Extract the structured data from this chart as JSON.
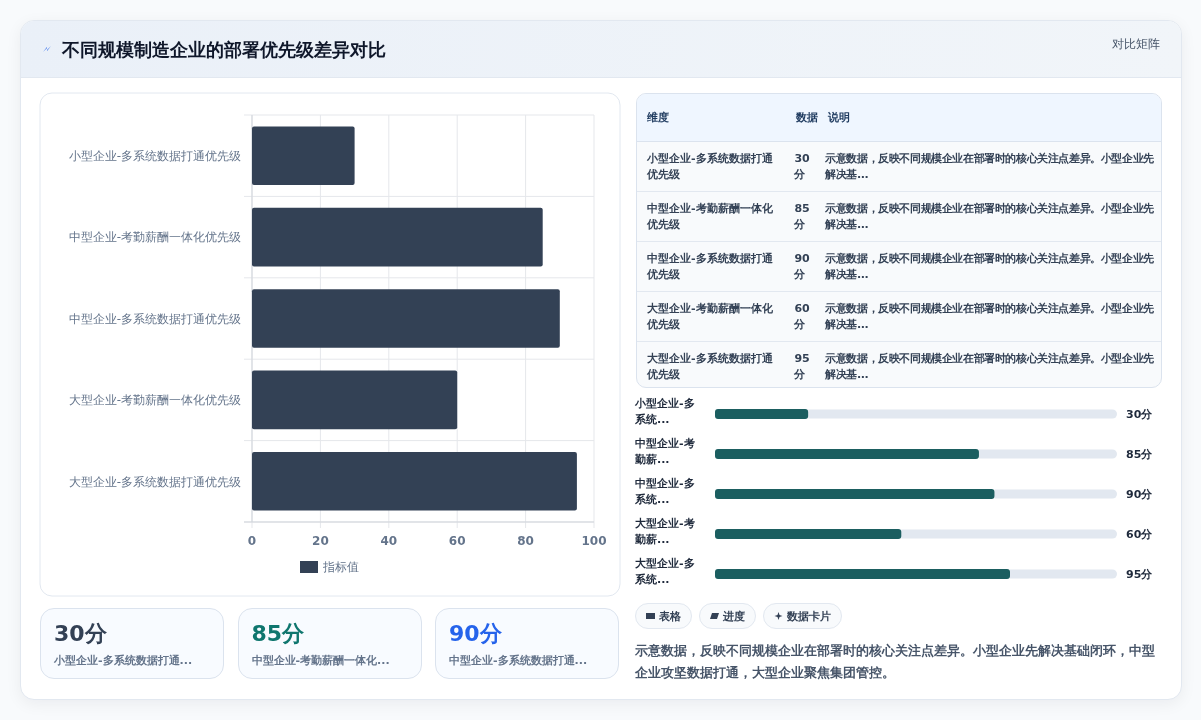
{
  "chart_data": [
    {
      "type": "other",
      "title": "不同规模制造企业的部署优先级差异对比",
      "subtitle": "对比矩阵"
    },
    {
      "type": "bar",
      "orientation": "horizontal",
      "categories": [
        "小型企业-多系统数据打通优先级",
        "中型企业-考勤薪酬一体化优先级",
        "中型企业-多系统数据打通优先级",
        "大型企业-考勤薪酬一体化优先级",
        "大型企业-多系统数据打通优先级"
      ],
      "series": [
        {
          "name": "指标值",
          "color": "#334155",
          "values": [
            30,
            85,
            90,
            60,
            95
          ]
        }
      ],
      "xlim": [
        0,
        100
      ],
      "xticks": [
        0,
        20,
        40,
        60,
        80,
        100
      ],
      "grid": true,
      "legend": "bottom"
    },
    {
      "type": "other",
      "categories": [
        "小型企业-多系统数据打通优先级",
        "中型企业-考勤薪酬一体化优先级",
        "中型企业-多系统数据打通优先级",
        "大型企业-考勤薪酬一体化优先级",
        "大型企业-多系统数据打通优先级"
      ],
      "value_labels": [
        "30分",
        "85分",
        "90分",
        "60分",
        "95分"
      ],
      "annotations": [
        "维度",
        "数据",
        "说明",
        "示意数据，反映不同规模企业在部署时的核心关注点差异。小型企业先解决基...",
        "示意数据，反映不同规模企业在部署时的核心关注点差异。小型企业先解决基...",
        "示意数据，反映不同规模企业在部署时的核心关注点差异。小型企业先解决基...",
        "示意数据，反映不同规模企业在部署时的核心关注点差异。小型企业先解决基...",
        "示意数据，反映不同规模企业在部署时的核心关注点差异。小型企业先解决基..."
      ]
    },
    {
      "type": "bar",
      "orientation": "horizontal",
      "categories": [
        "小型企业-多系统...",
        "中型企业-考勤薪...",
        "中型企业-多系统...",
        "大型企业-考勤薪...",
        "大型企业-多系统..."
      ],
      "values": [
        30,
        85,
        90,
        60,
        95
      ],
      "value_labels": [
        "30分",
        "85分",
        "90分",
        "60分",
        "95分"
      ],
      "color": "#1b5e60",
      "tick_labels": "y"
    },
    {
      "type": "other",
      "categories": [
        "小型企业-多系统数据打通...",
        "中型企业-考勤薪酬一体化...",
        "中型企业-多系统数据打通..."
      ],
      "value_labels": [
        "30分",
        "85分",
        "90分"
      ],
      "colors": [
        "#334155",
        "#0f766e",
        "#2563eb"
      ],
      "annotations": [
        "表格",
        "进度",
        "数据卡片",
        "示意数据，反映不同规模企业在部署时的核心关注点差异。小型企业先解决基础闭环，中型企业攻坚数据打通，大型企业聚焦集团管控。"
      ]
    }
  ]
}
